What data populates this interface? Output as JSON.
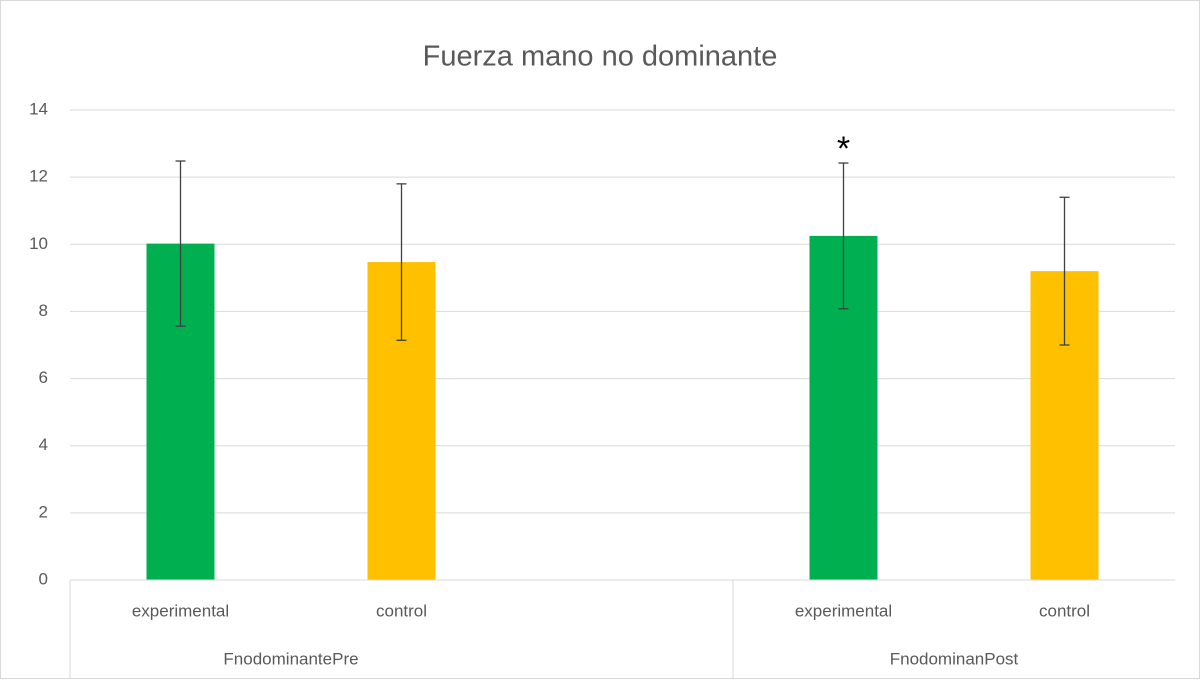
{
  "chart_data": {
    "type": "bar",
    "title": "Fuerza mano no dominante",
    "groups": [
      {
        "name": "FnodominantePre",
        "categories": [
          "experimental",
          "control"
        ],
        "values": [
          10.02,
          9.47
        ],
        "errors": [
          2.46,
          2.33
        ]
      },
      {
        "name": "FnodominanPost",
        "categories": [
          "experimental",
          "control"
        ],
        "values": [
          10.25,
          9.2
        ],
        "errors": [
          2.17,
          2.2
        ]
      }
    ],
    "colors": [
      "#00b050",
      "#ffc000"
    ],
    "annotations": [
      {
        "text": "*",
        "group": 1,
        "category": 0
      }
    ],
    "ylim": [
      0,
      14
    ],
    "yticks": [
      0,
      2,
      4,
      6,
      8,
      10,
      12,
      14
    ],
    "grid": true
  }
}
